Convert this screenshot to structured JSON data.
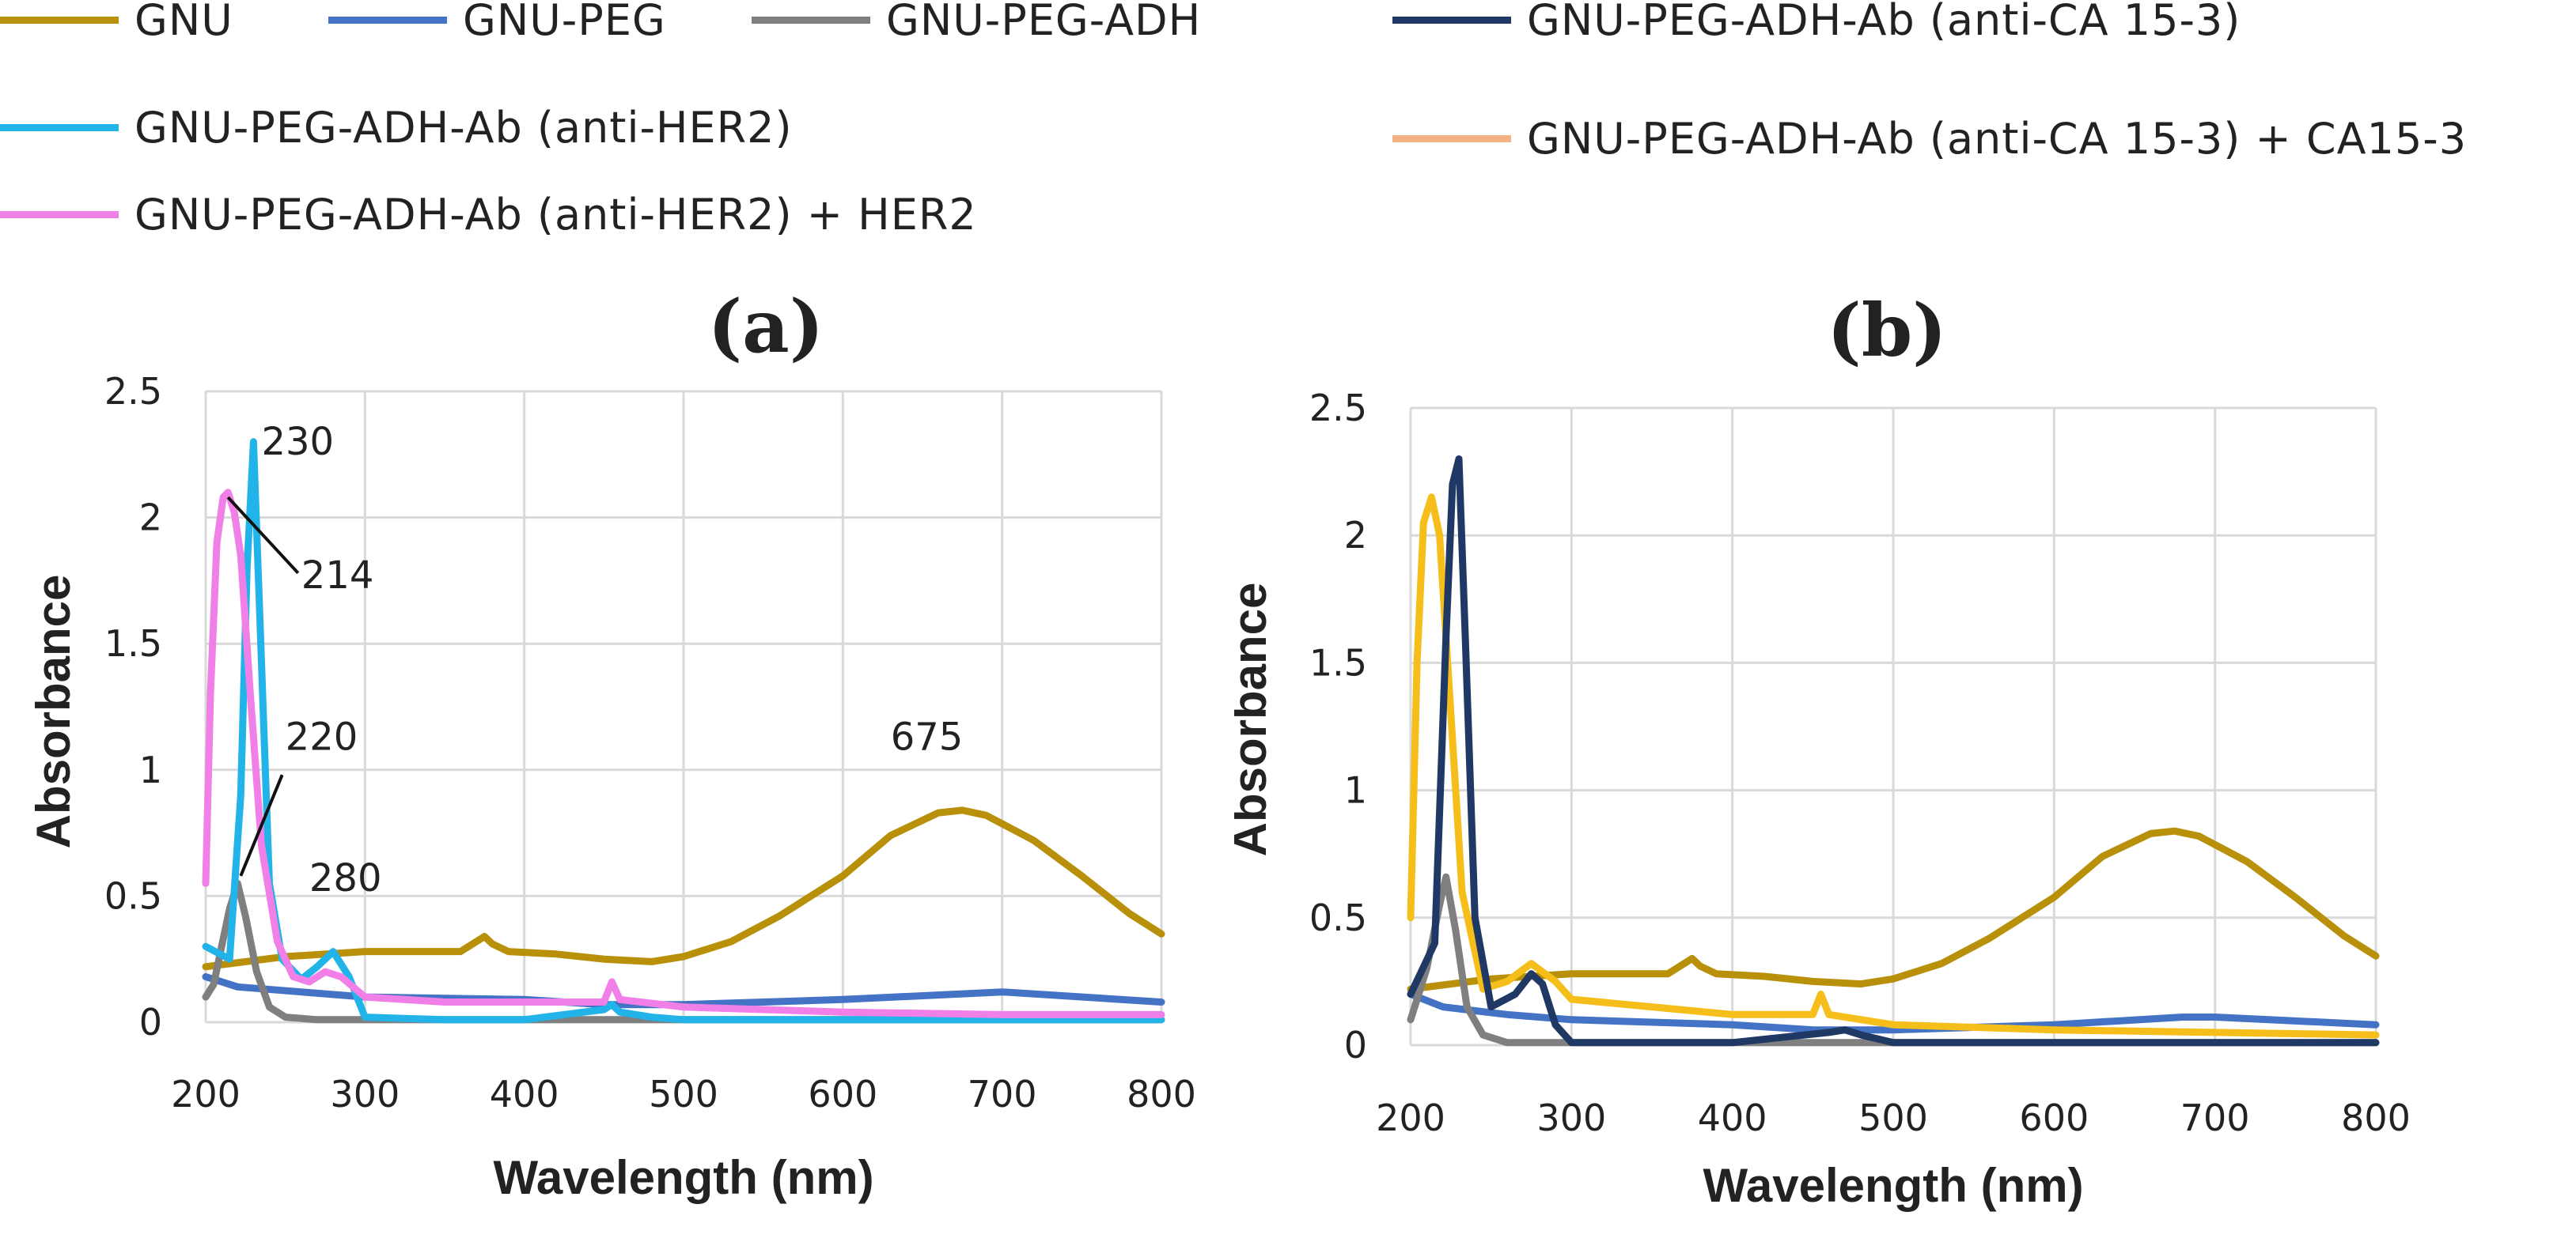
{
  "legend": [
    {
      "key": "gnu",
      "label": "GNU",
      "color": "#B8900A"
    },
    {
      "key": "peg",
      "label": "GNU-PEG",
      "color": "#4472C4"
    },
    {
      "key": "adh",
      "label": "GNU-PEG-ADH",
      "color": "#7F7F7F"
    },
    {
      "key": "ab_ca",
      "label": "GNU-PEG-ADH-Ab (anti-CA 15-3)",
      "color": "#1F3864"
    },
    {
      "key": "ab_her2",
      "label": "GNU-PEG-ADH-Ab (anti-HER2)",
      "color": "#22B4E8"
    },
    {
      "key": "ab_ca_plus",
      "label": "GNU-PEG-ADH-Ab (anti-CA 15-3) + CA15-3",
      "color": "#F4B183"
    },
    {
      "key": "ab_her2_plus",
      "label": "GNU-PEG-ADH-Ab (anti-HER2) + HER2",
      "color": "#F080E8"
    }
  ],
  "chart_data": [
    {
      "type": "line",
      "title": "(a)",
      "xlabel": "Wavelength (nm)",
      "ylabel": "Absorbance",
      "xlim": [
        200,
        800
      ],
      "ylim": [
        0,
        2.5
      ],
      "xticks": [
        "200",
        "300",
        "400",
        "500",
        "600",
        "700",
        "800"
      ],
      "yticks": [
        "0",
        "0.5",
        "1",
        "1.5",
        "2",
        "2.5"
      ],
      "grid": true,
      "annotations": [
        {
          "text": "230",
          "x": 235,
          "y": 2.25
        },
        {
          "text": "214",
          "x": 260,
          "y": 1.72
        },
        {
          "text": "220",
          "x": 250,
          "y": 1.08
        },
        {
          "text": "280",
          "x": 265,
          "y": 0.52
        },
        {
          "text": "675",
          "x": 630,
          "y": 1.08
        }
      ],
      "series": [
        {
          "key": "gnu",
          "x": [
            200,
            250,
            300,
            360,
            370,
            375,
            380,
            390,
            420,
            450,
            480,
            500,
            530,
            560,
            600,
            630,
            660,
            675,
            690,
            720,
            750,
            780,
            800
          ],
          "y": [
            0.22,
            0.26,
            0.28,
            0.28,
            0.32,
            0.34,
            0.31,
            0.28,
            0.27,
            0.25,
            0.24,
            0.26,
            0.32,
            0.42,
            0.58,
            0.74,
            0.83,
            0.84,
            0.82,
            0.72,
            0.58,
            0.43,
            0.35
          ]
        },
        {
          "key": "peg",
          "x": [
            200,
            220,
            260,
            300,
            400,
            450,
            500,
            600,
            700,
            800
          ],
          "y": [
            0.18,
            0.14,
            0.12,
            0.1,
            0.09,
            0.07,
            0.07,
            0.09,
            0.12,
            0.08
          ]
        },
        {
          "key": "adh",
          "x": [
            200,
            205,
            210,
            215,
            220,
            225,
            232,
            240,
            250,
            270,
            300,
            400,
            500,
            600,
            700,
            800
          ],
          "y": [
            0.1,
            0.15,
            0.3,
            0.45,
            0.55,
            0.42,
            0.2,
            0.06,
            0.02,
            0.01,
            0.01,
            0.01,
            0.01,
            0.01,
            0.01,
            0.01
          ]
        },
        {
          "key": "ab_her2",
          "x": [
            200,
            215,
            222,
            226,
            230,
            234,
            240,
            248,
            260,
            270,
            280,
            290,
            300,
            350,
            400,
            450,
            455,
            460,
            480,
            500,
            600,
            700,
            800
          ],
          "y": [
            0.3,
            0.25,
            0.9,
            1.8,
            2.3,
            1.6,
            0.55,
            0.25,
            0.17,
            0.22,
            0.28,
            0.18,
            0.02,
            0.01,
            0.01,
            0.05,
            0.07,
            0.04,
            0.02,
            0.01,
            0.01,
            0.01,
            0.01
          ]
        },
        {
          "key": "ab_her2_plus",
          "x": [
            200,
            203,
            207,
            211,
            214,
            218,
            222,
            228,
            235,
            245,
            255,
            265,
            275,
            285,
            300,
            350,
            400,
            450,
            455,
            460,
            500,
            600,
            700,
            800
          ],
          "y": [
            0.55,
            1.3,
            1.9,
            2.08,
            2.1,
            2.02,
            1.85,
            1.3,
            0.7,
            0.32,
            0.18,
            0.16,
            0.2,
            0.18,
            0.1,
            0.08,
            0.08,
            0.08,
            0.16,
            0.09,
            0.06,
            0.04,
            0.03,
            0.03
          ]
        }
      ]
    },
    {
      "type": "line",
      "title": "(b)",
      "xlabel": "Wavelength (nm)",
      "ylabel": "Absorbance",
      "xlim": [
        200,
        800
      ],
      "ylim": [
        0,
        2.5
      ],
      "xticks": [
        "200",
        "300",
        "400",
        "500",
        "600",
        "700",
        "800"
      ],
      "yticks": [
        "0",
        "0.5",
        "1",
        "1.5",
        "2",
        "2.5"
      ],
      "grid": true,
      "annotations": [],
      "series": [
        {
          "key": "gnu",
          "x": [
            200,
            250,
            300,
            360,
            370,
            375,
            380,
            390,
            420,
            450,
            480,
            500,
            530,
            560,
            600,
            630,
            660,
            675,
            690,
            720,
            750,
            780,
            800
          ],
          "y": [
            0.22,
            0.26,
            0.28,
            0.28,
            0.32,
            0.34,
            0.31,
            0.28,
            0.27,
            0.25,
            0.24,
            0.26,
            0.32,
            0.42,
            0.58,
            0.74,
            0.83,
            0.84,
            0.82,
            0.72,
            0.58,
            0.43,
            0.35
          ]
        },
        {
          "key": "peg",
          "x": [
            200,
            220,
            260,
            300,
            400,
            450,
            500,
            600,
            680,
            700,
            800
          ],
          "y": [
            0.2,
            0.15,
            0.12,
            0.1,
            0.08,
            0.06,
            0.06,
            0.08,
            0.11,
            0.11,
            0.08
          ]
        },
        {
          "key": "adh",
          "x": [
            200,
            210,
            218,
            222,
            228,
            235,
            245,
            260,
            300,
            400,
            500,
            800
          ],
          "y": [
            0.1,
            0.3,
            0.55,
            0.66,
            0.45,
            0.15,
            0.04,
            0.01,
            0.01,
            0.01,
            0.01,
            0.01
          ]
        },
        {
          "key": "ab_ca_plus",
          "x": [
            200,
            204,
            208,
            213,
            218,
            224,
            232,
            245,
            260,
            275,
            290,
            300,
            400,
            450,
            455,
            460,
            500,
            600,
            700,
            800
          ],
          "y": [
            0.5,
            1.5,
            2.05,
            2.15,
            2.0,
            1.4,
            0.6,
            0.22,
            0.25,
            0.32,
            0.25,
            0.18,
            0.12,
            0.12,
            0.2,
            0.12,
            0.08,
            0.06,
            0.05,
            0.04
          ]
        },
        {
          "key": "ab_ca",
          "x": [
            200,
            215,
            222,
            226,
            230,
            234,
            240,
            250,
            265,
            275,
            282,
            290,
            300,
            350,
            400,
            460,
            470,
            480,
            500,
            600,
            700,
            800
          ],
          "y": [
            0.2,
            0.4,
            1.6,
            2.2,
            2.3,
            1.6,
            0.5,
            0.15,
            0.2,
            0.28,
            0.24,
            0.08,
            0.01,
            0.01,
            0.01,
            0.05,
            0.06,
            0.04,
            0.01,
            0.01,
            0.01,
            0.01
          ]
        }
      ]
    }
  ]
}
